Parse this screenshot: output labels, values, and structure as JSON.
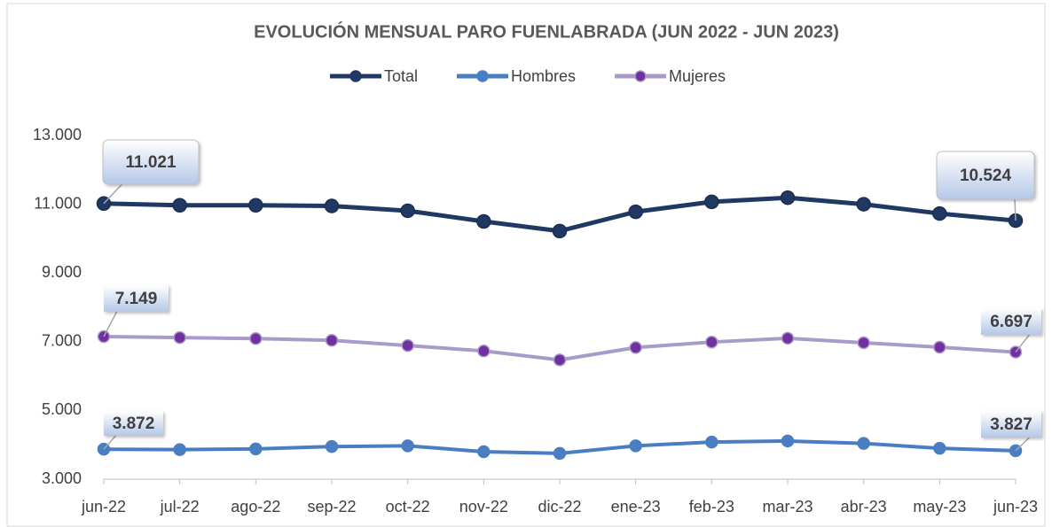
{
  "chart_data": {
    "type": "line",
    "title": "EVOLUCIÓN MENSUAL PARO FUENLABRADA (JUN 2022 - JUN 2023)",
    "categories": [
      "jun-22",
      "jul-22",
      "ago-22",
      "sep-22",
      "oct-22",
      "nov-22",
      "dic-22",
      "ene-23",
      "feb-23",
      "mar-23",
      "abr-23",
      "may-23",
      "jun-23"
    ],
    "series": [
      {
        "name": "Total",
        "color": "#203864",
        "marker_color": "#203864",
        "values": [
          11021,
          10970,
          10970,
          10950,
          10810,
          10500,
          10220,
          10780,
          11070,
          11190,
          11000,
          10730,
          10524
        ],
        "value_labels": [
          "11.021",
          null,
          null,
          null,
          null,
          null,
          null,
          null,
          null,
          null,
          null,
          null,
          "10.524"
        ]
      },
      {
        "name": "Hombres",
        "color": "#4a7ec2",
        "marker_color": "#4a7ec2",
        "values": [
          3872,
          3860,
          3880,
          3950,
          3970,
          3800,
          3750,
          3970,
          4080,
          4110,
          4040,
          3900,
          3827
        ],
        "value_labels": [
          "3.872",
          null,
          null,
          null,
          null,
          null,
          null,
          null,
          null,
          null,
          null,
          null,
          "3.827"
        ]
      },
      {
        "name": "Mujeres",
        "color": "#a99bc9",
        "marker_color": "#7030a0",
        "values": [
          7149,
          7120,
          7090,
          7040,
          6890,
          6730,
          6470,
          6830,
          6990,
          7100,
          6970,
          6840,
          6697
        ],
        "value_labels": [
          "7.149",
          null,
          null,
          null,
          null,
          null,
          null,
          null,
          null,
          null,
          null,
          null,
          "6.697"
        ]
      }
    ],
    "ylim": [
      3000,
      13000
    ],
    "yticks": [
      {
        "value": 3000,
        "label": "3.000"
      },
      {
        "value": 5000,
        "label": "5.000"
      },
      {
        "value": 7000,
        "label": "7.000"
      },
      {
        "value": 9000,
        "label": "9.000"
      },
      {
        "value": 11000,
        "label": "11.000"
      },
      {
        "value": 13000,
        "label": "13.000"
      }
    ],
    "legend": "top"
  }
}
